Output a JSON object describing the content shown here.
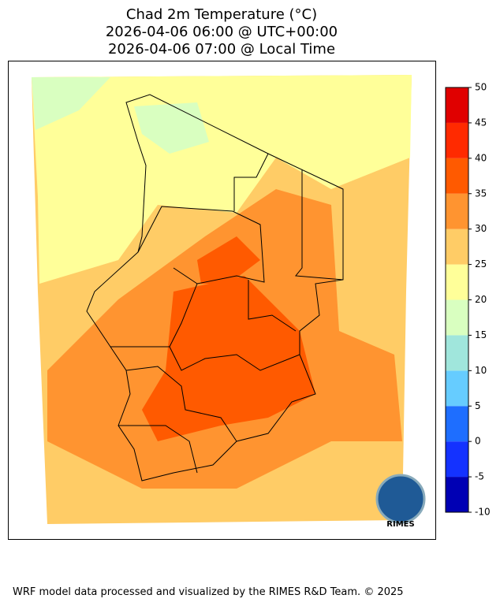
{
  "title": [
    "Chad 2m Temperature (°C)",
    "2026-04-06 06:00 @ UTC+00:00",
    "2026-04-06 07:00 @ Local Time"
  ],
  "colorbar": {
    "levels": [
      -10,
      -5,
      0,
      5,
      10,
      15,
      20,
      25,
      30,
      35,
      40,
      45,
      50
    ],
    "colors": [
      "#0000b4",
      "#1432ff",
      "#1e6eff",
      "#66ccff",
      "#a0e6dc",
      "#d9ffc0",
      "#ffff99",
      "#ffcc66",
      "#ff9430",
      "#ff5a00",
      "#ff2a00",
      "#e00000",
      "#a00000"
    ],
    "lim": [
      -10,
      50
    ]
  },
  "logo": "RIMES",
  "footer": "WRF model data processed and visualized by the RIMES R&D Team. © 2025"
}
